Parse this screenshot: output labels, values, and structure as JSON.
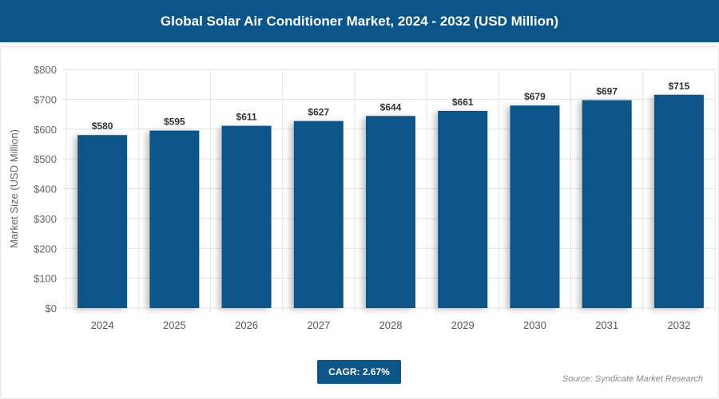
{
  "chart_data": {
    "type": "bar",
    "title": "Global Solar Air Conditioner Market, 2024 - 2032 (USD Million)",
    "ylabel": "Market Size (USD Million)",
    "xlabel": "",
    "categories": [
      "2024",
      "2025",
      "2026",
      "2027",
      "2028",
      "2029",
      "2030",
      "2031",
      "2032"
    ],
    "values": [
      580,
      595,
      611,
      627,
      644,
      661,
      679,
      697,
      715
    ],
    "data_labels": [
      "$580",
      "$595",
      "$611",
      "$627",
      "$644",
      "$661",
      "$679",
      "$697",
      "$715"
    ],
    "yticks": [
      "$0",
      "$100",
      "$200",
      "$300",
      "$400",
      "$500",
      "$600",
      "$700",
      "$800"
    ],
    "ylim": [
      0,
      800
    ],
    "grid": true,
    "bar_color": "#0b5588"
  },
  "cagr": "CAGR: 2.67%",
  "source": "Source: Syndicate Market Research"
}
